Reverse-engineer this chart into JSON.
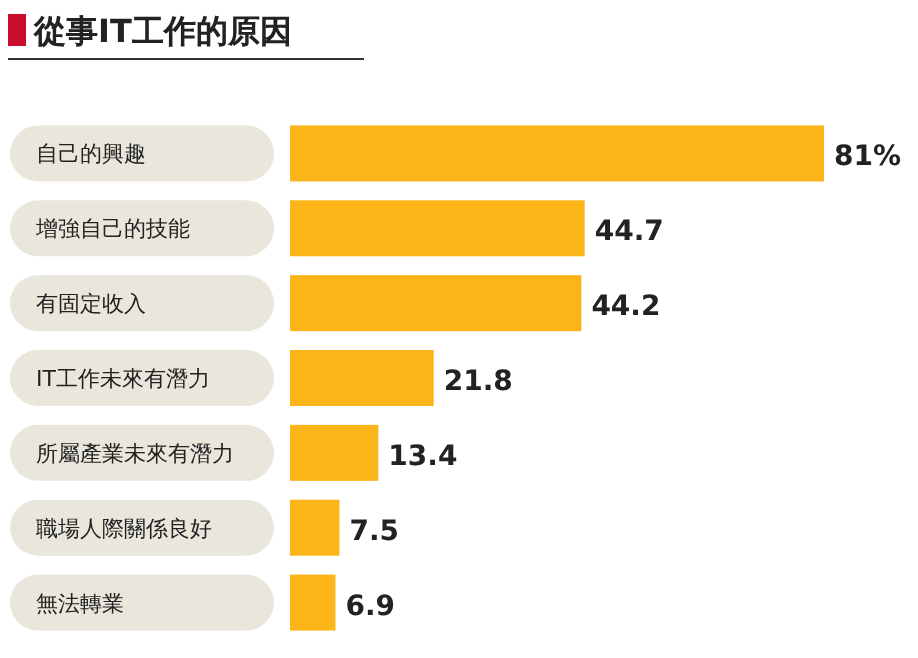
{
  "chart_data": {
    "type": "bar",
    "orientation": "horizontal",
    "title": "從事IT工作的原因",
    "categories": [
      "自己的興趣",
      "增強自己的技能",
      "有固定收入",
      "IT工作未來有潛力",
      "所屬產業未來有潛力",
      "職場人際關係良好",
      "無法轉業"
    ],
    "values": [
      81,
      44.7,
      44.2,
      21.8,
      13.4,
      7.5,
      6.9
    ],
    "value_labels": [
      "81%",
      "44.7",
      "44.2",
      "21.8",
      "13.4",
      "7.5",
      "6.9"
    ],
    "color": "#fbb519"
  }
}
